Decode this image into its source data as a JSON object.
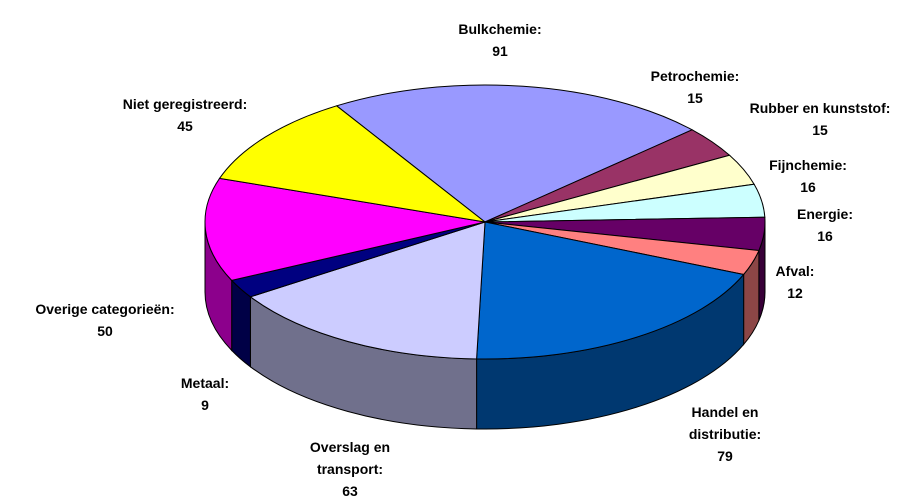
{
  "chart_data": {
    "type": "pie3d",
    "categories": [
      "Bulkchemie:",
      "Petrochemie:",
      "Rubber en kunststof:",
      "Fijnchemie:",
      "Energie:",
      "Afval:",
      "Handel en distributie:",
      "Overslag en transport:",
      "Metaal:",
      "Overige categorieën:",
      "Niet geregistreerd:"
    ],
    "values": [
      91,
      15,
      15,
      16,
      16,
      12,
      79,
      63,
      9,
      50,
      45
    ],
    "colors": [
      "#9999ff",
      "#993366",
      "#ffffcc",
      "#ccffff",
      "#660066",
      "#ff8080",
      "#0066cc",
      "#ccccff",
      "#000080",
      "#ff00ff",
      "#ffff00"
    ]
  }
}
